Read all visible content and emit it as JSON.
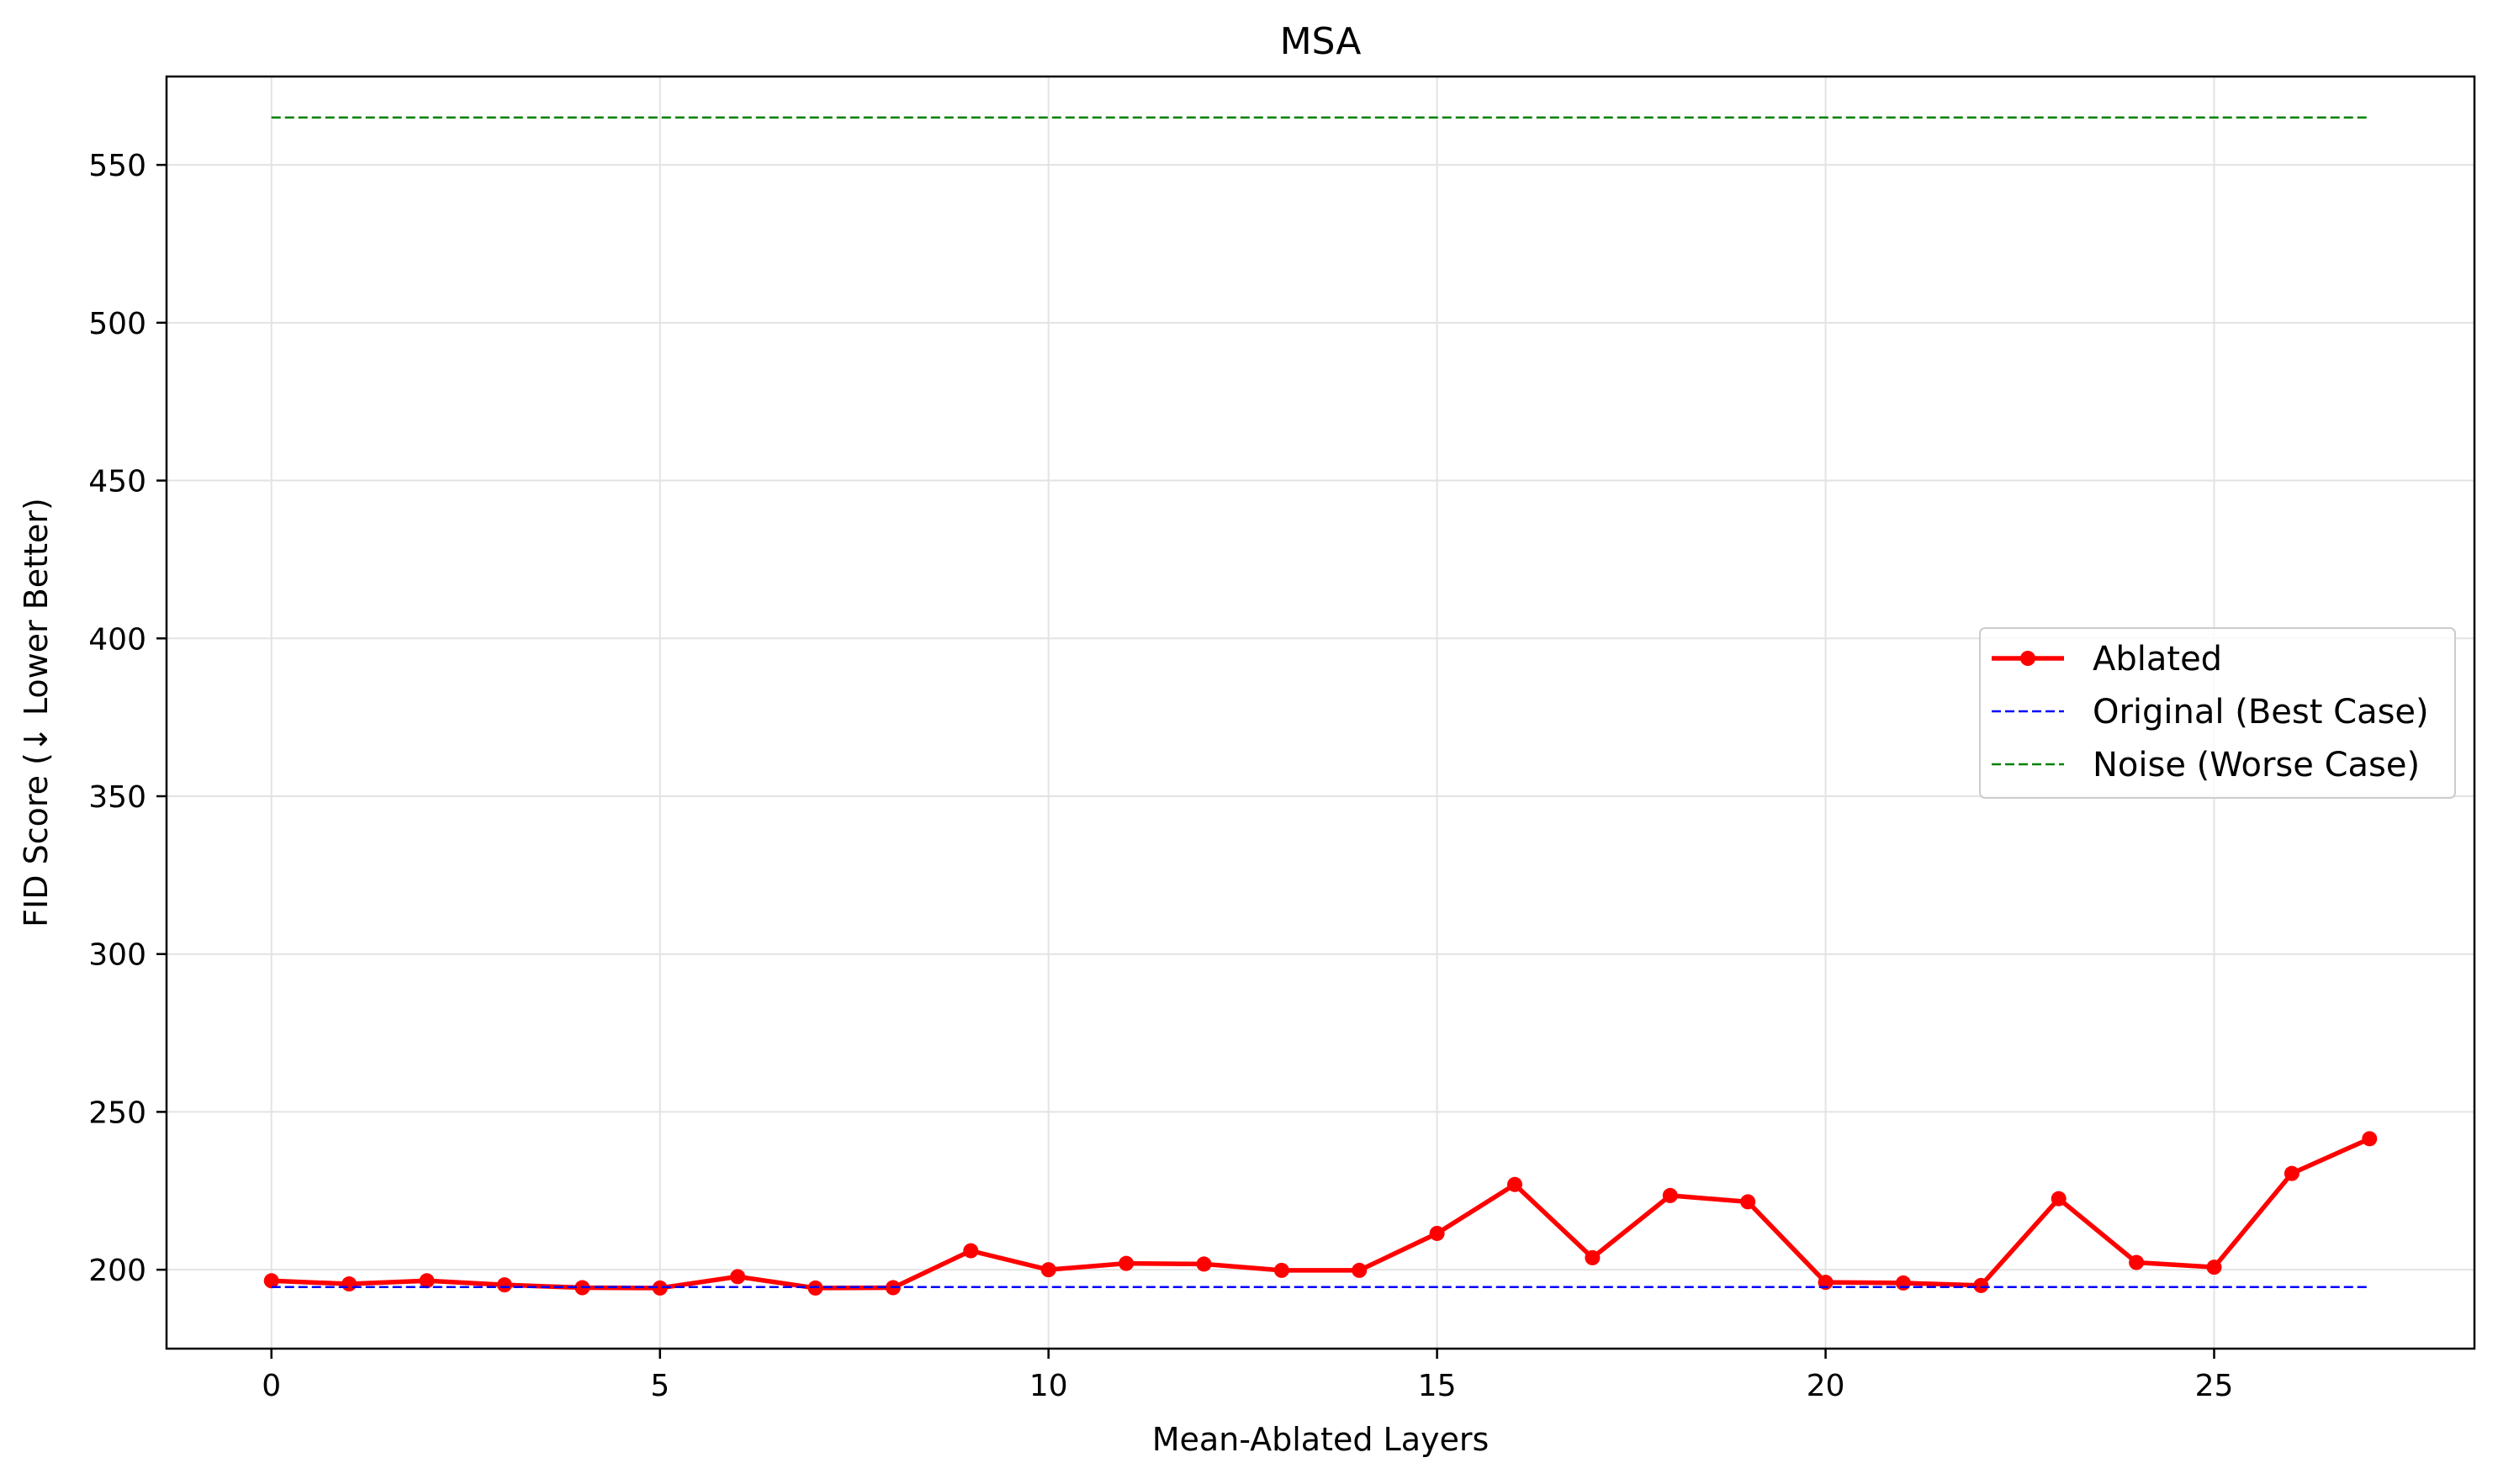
{
  "chart_data": {
    "type": "line",
    "title": "MSA",
    "xlabel": "Mean-Ablated Layers",
    "ylabel": "FID Score (↓ Lower Better)",
    "xlim": [
      -1.35,
      28.35
    ],
    "ylim": [
      175,
      578
    ],
    "x_ticks": [
      0,
      5,
      10,
      15,
      20,
      25
    ],
    "y_ticks": [
      200,
      250,
      300,
      350,
      400,
      450,
      500,
      550
    ],
    "grid": true,
    "legend_position": "center-right",
    "series": [
      {
        "name": "Ablated",
        "style": "solid-markers",
        "color": "#ff0000",
        "x": [
          0,
          1,
          2,
          3,
          4,
          5,
          6,
          7,
          8,
          9,
          10,
          11,
          12,
          13,
          14,
          15,
          16,
          17,
          18,
          19,
          20,
          21,
          22,
          23,
          24,
          25,
          26,
          27
        ],
        "values": [
          196.5,
          195.5,
          196.5,
          195.2,
          194.3,
          194.2,
          197.8,
          194.2,
          194.3,
          206,
          200,
          202,
          201.8,
          199.8,
          199.8,
          211.5,
          227,
          203.8,
          223.5,
          221.5,
          196,
          195.8,
          195,
          222.5,
          202.3,
          200.8,
          230.5,
          241.5
        ]
      },
      {
        "name": "Original (Best Case)",
        "style": "dashed",
        "color": "#0000ff",
        "x": [
          0,
          27
        ],
        "values": [
          194.5,
          194.5
        ]
      },
      {
        "name": "Noise (Worse Case)",
        "style": "dashed",
        "color": "#008000",
        "x": [
          0,
          27
        ],
        "values": [
          565,
          565
        ]
      }
    ]
  }
}
